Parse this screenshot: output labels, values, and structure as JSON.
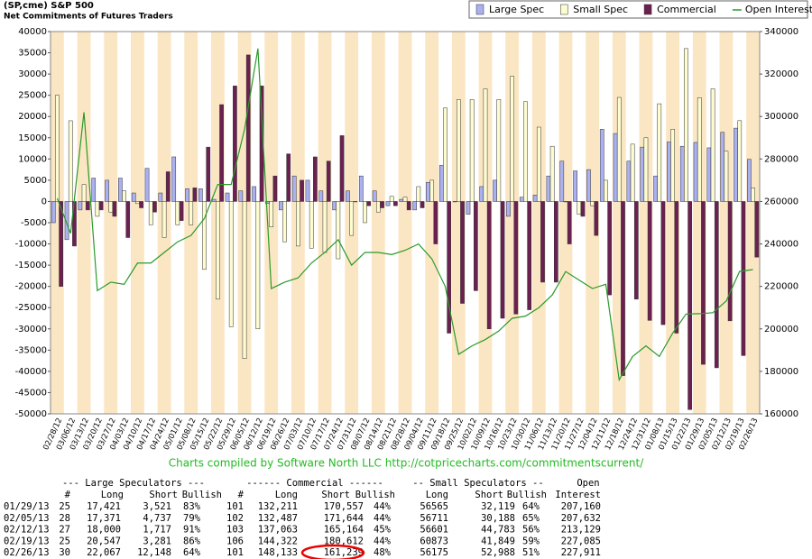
{
  "chart_data": {
    "type": "bar",
    "title": "(SP,cme) S&P 500",
    "subtitle": "Net Commitments of Futures Traders",
    "legend": "top-right",
    "categories": [
      "02/28/12",
      "03/06/12",
      "03/13/12",
      "03/20/12",
      "03/27/12",
      "04/03/12",
      "04/10/12",
      "04/17/12",
      "04/24/12",
      "05/01/12",
      "05/08/12",
      "05/15/12",
      "05/22/12",
      "05/29/12",
      "06/05/12",
      "06/12/12",
      "06/19/12",
      "06/26/12",
      "07/03/12",
      "07/10/12",
      "07/17/12",
      "07/24/12",
      "07/31/12",
      "08/07/12",
      "08/14/12",
      "08/21/12",
      "08/28/12",
      "09/04/12",
      "09/11/12",
      "09/18/12",
      "09/25/12",
      "10/02/12",
      "10/09/12",
      "10/16/12",
      "10/23/12",
      "10/30/12",
      "11/06/12",
      "11/13/12",
      "11/20/12",
      "11/27/12",
      "12/04/12",
      "12/11/12",
      "12/18/12",
      "12/24/12",
      "12/31/12",
      "01/08/13",
      "01/15/13",
      "01/22/13",
      "01/29/13",
      "02/05/13",
      "02/12/13",
      "02/19/13",
      "02/26/13"
    ],
    "series": [
      {
        "name": "Large Spec",
        "color": "#aab0f0",
        "values": [
          -5000,
          -9000,
          -2000,
          5500,
          5000,
          5500,
          2000,
          7800,
          2000,
          10500,
          3000,
          3000,
          500,
          2000,
          2500,
          3500,
          -500,
          -2000,
          6000,
          5000,
          2500,
          -2000,
          2500,
          6000,
          2500,
          -1000,
          500,
          -2000,
          4500,
          8500,
          0,
          -3000,
          3500,
          5000,
          -3500,
          1000,
          1500,
          6000,
          9500,
          7200,
          7500,
          17000,
          16000,
          9500,
          12800,
          6000,
          14000,
          13000,
          13900,
          12634,
          16283,
          17266,
          9919
        ]
      },
      {
        "name": "Small Spec",
        "color": "#fdfcd0",
        "values": [
          25000,
          19000,
          4000,
          -3500,
          -2500,
          2500,
          -500,
          -5500,
          -8500,
          -5500,
          -5500,
          -16000,
          -23000,
          -29500,
          -37000,
          -30000,
          -6000,
          -9500,
          -10500,
          -11000,
          -12000,
          -13500,
          -8000,
          -5000,
          -2500,
          1200,
          1000,
          3500,
          5000,
          22000,
          24000,
          24000,
          26500,
          24000,
          29500,
          23500,
          17500,
          13000,
          0,
          -3000,
          -1000,
          5000,
          24500,
          13500,
          15000,
          23000,
          17000,
          36000,
          24446,
          26523,
          11818,
          19024,
          3187
        ]
      },
      {
        "name": "Commercial",
        "color": "#6b2050",
        "values": [
          -20000,
          -10500,
          -2000,
          -2000,
          -3500,
          -8500,
          -1500,
          -2500,
          7000,
          -4500,
          3200,
          12800,
          22800,
          27200,
          34500,
          27200,
          6000,
          11200,
          5000,
          10500,
          9500,
          15500,
          0,
          -1000,
          -1500,
          -1000,
          -2000,
          -1500,
          -10000,
          -31000,
          -24000,
          -21000,
          -30000,
          -27500,
          -26500,
          -25500,
          -19000,
          -19000,
          -10000,
          -3500,
          -8000,
          -22000,
          -41000,
          -23000,
          -28000,
          -29000,
          -31000,
          -49000,
          -38346,
          -39157,
          -28101,
          -36290,
          -13106
        ]
      },
      {
        "name": "Open Interest",
        "color": "#2a9a2a",
        "type": "line",
        "axis": "y2",
        "values": [
          261500,
          245000,
          302000,
          218000,
          222000,
          221000,
          231000,
          231000,
          236000,
          241000,
          244000,
          252000,
          268000,
          268000,
          294000,
          332000,
          219000,
          222000,
          224000,
          231000,
          236000,
          242000,
          230000,
          236000,
          236000,
          235000,
          237000,
          240000,
          233000,
          220000,
          188000,
          192000,
          195000,
          199000,
          205000,
          206000,
          210000,
          216000,
          227000,
          223000,
          219000,
          221000,
          176000,
          187000,
          192000,
          187000,
          198000,
          207000,
          207160,
          207632,
          213129,
          227085,
          227911
        ]
      }
    ],
    "ylim": [
      -50000,
      40000
    ],
    "yticks": [
      -50000,
      -45000,
      -40000,
      -35000,
      -30000,
      -25000,
      -20000,
      -15000,
      -10000,
      -5000,
      0,
      5000,
      10000,
      15000,
      20000,
      25000,
      30000,
      35000,
      40000
    ],
    "y2lim": [
      160000,
      340000
    ],
    "y2ticks": [
      160000,
      180000,
      200000,
      220000,
      240000,
      260000,
      280000,
      300000,
      320000,
      340000
    ]
  },
  "credit": "Charts compiled by Software North LLC  http://cotpricecharts.com/commitmentscurrent/",
  "table": {
    "groups": [
      "--- Large Speculators ---",
      "------ Commercial ------",
      "-- Small Speculators --",
      "Open"
    ],
    "columns": [
      "#",
      "Long",
      "Short",
      "Bullish",
      "#",
      "Long",
      "Short",
      "Bullish",
      "Long",
      "Short",
      "Bullish",
      "Interest"
    ],
    "rows": [
      [
        "01/29/13",
        "25",
        "17,421",
        "3,521",
        "83%",
        "101",
        "132,211",
        "170,557",
        "44%",
        "56565",
        "32,119",
        "64%",
        "207,160"
      ],
      [
        "02/05/13",
        "28",
        "17,371",
        "4,737",
        "79%",
        "102",
        "132,487",
        "171,644",
        "44%",
        "56711",
        "30,188",
        "65%",
        "207,632"
      ],
      [
        "02/12/13",
        "27",
        "18,000",
        "1,717",
        "91%",
        "103",
        "137,063",
        "165,164",
        "45%",
        "56601",
        "44,783",
        "56%",
        "213,129"
      ],
      [
        "02/19/13",
        "25",
        "20,547",
        "3,281",
        "86%",
        "106",
        "144,322",
        "180,612",
        "44%",
        "60873",
        "41,849",
        "59%",
        "227,085"
      ],
      [
        "02/26/13",
        "30",
        "22,067",
        "12,148",
        "64%",
        "101",
        "148,133",
        "161,239",
        "48%",
        "56175",
        "52,988",
        "51%",
        "227,911"
      ]
    ]
  }
}
